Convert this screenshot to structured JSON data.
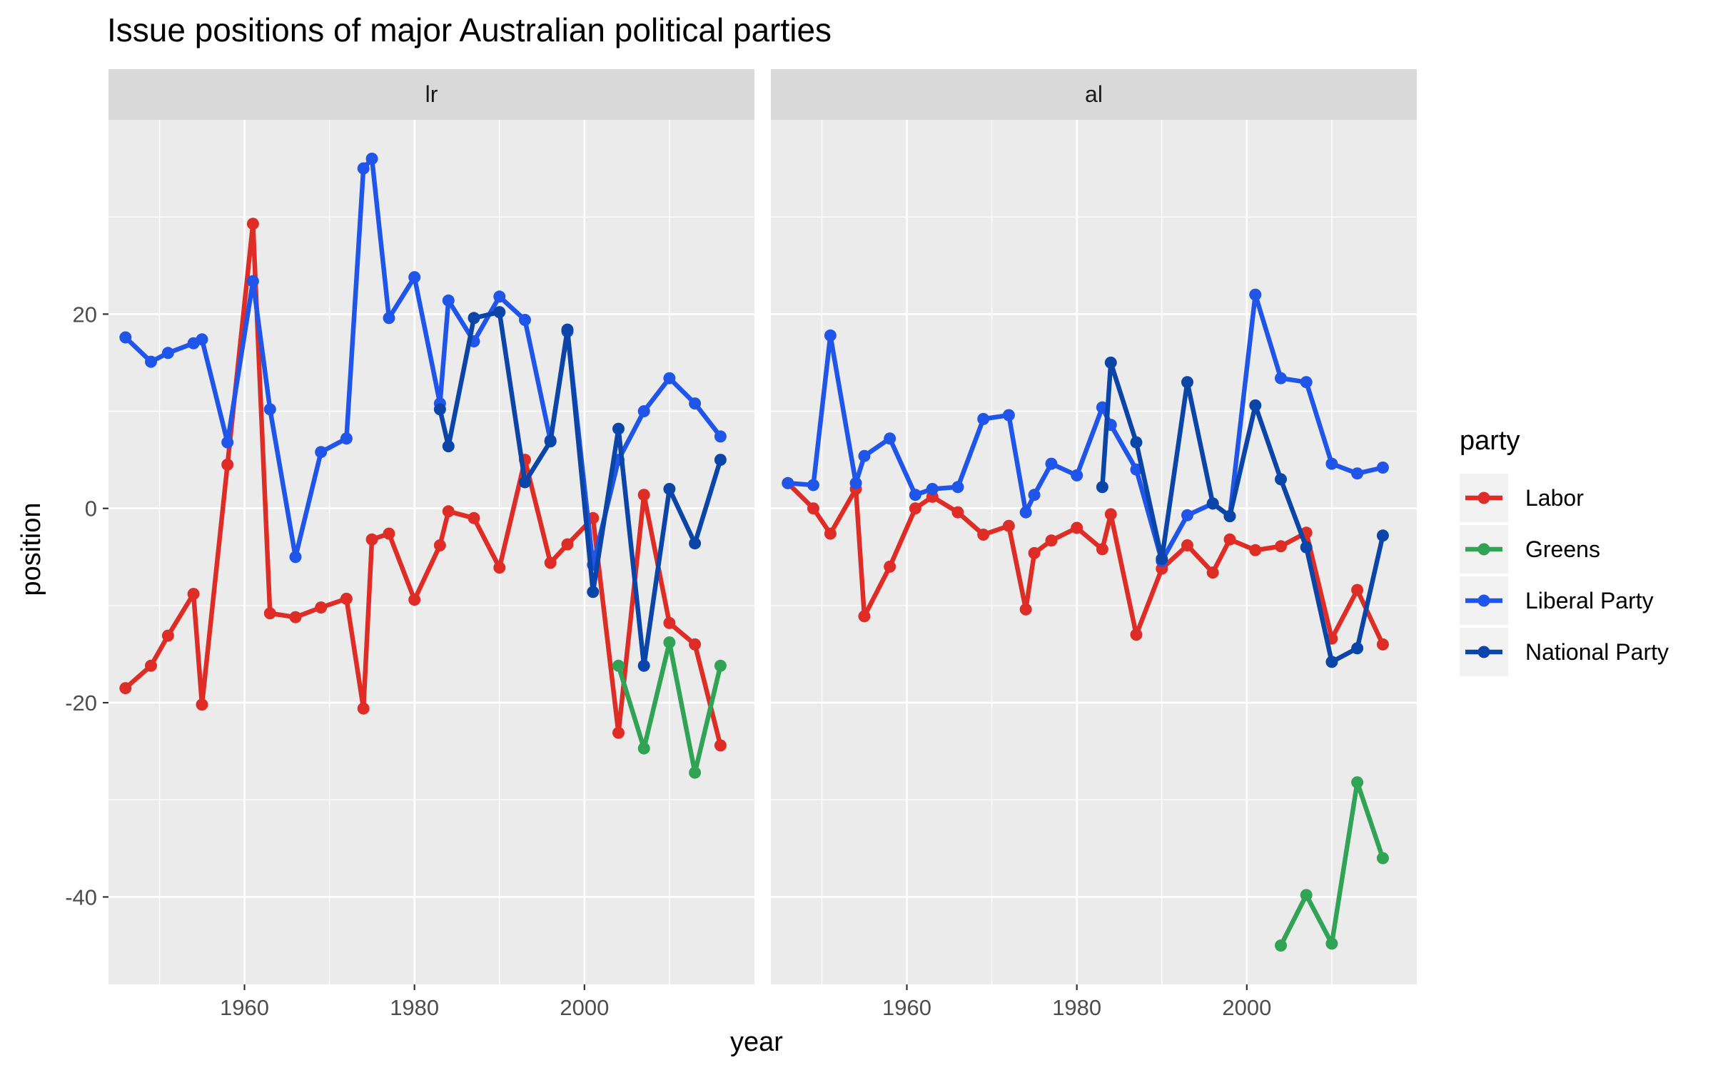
{
  "chart_data": {
    "type": "line",
    "title": "Issue positions of major Australian political parties",
    "xlabel": "year",
    "ylabel": "position",
    "xlim": [
      1944,
      2020
    ],
    "ylim": [
      -49,
      40
    ],
    "x_ticks": [
      1960,
      1980,
      2000
    ],
    "y_ticks": [
      -40,
      -20,
      0,
      20
    ],
    "grid": true,
    "legend": {
      "title": "party",
      "position": "right",
      "entries": [
        "Labor",
        "Greens",
        "Liberal Party",
        "National Party"
      ]
    },
    "colors": {
      "Labor": "#de2d26",
      "Greens": "#31a354",
      "Liberal Party": "#1f55e8",
      "National Party": "#0b45a8"
    },
    "panels": [
      {
        "label": "lr",
        "series": [
          {
            "name": "Labor",
            "points": [
              [
                1946,
                -18.5
              ],
              [
                1949,
                -16.2
              ],
              [
                1951,
                -13.1
              ],
              [
                1954,
                -8.8
              ],
              [
                1955,
                -20.2
              ],
              [
                1958,
                4.5
              ],
              [
                1961,
                29.3
              ],
              [
                1963,
                -10.8
              ],
              [
                1966,
                -11.2
              ],
              [
                1969,
                -10.2
              ],
              [
                1972,
                -9.3
              ],
              [
                1974,
                -20.6
              ],
              [
                1975,
                -3.2
              ],
              [
                1977,
                -2.6
              ],
              [
                1980,
                -9.4
              ],
              [
                1983,
                -3.8
              ],
              [
                1984,
                -0.3
              ],
              [
                1987,
                -1.0
              ],
              [
                1990,
                -6.1
              ],
              [
                1993,
                5.0
              ],
              [
                1996,
                -5.6
              ],
              [
                1998,
                -3.7
              ],
              [
                2001,
                -1.0
              ],
              [
                2004,
                -23.1
              ],
              [
                2007,
                1.4
              ],
              [
                2010,
                -11.8
              ],
              [
                2013,
                -14.0
              ],
              [
                2016,
                -24.4
              ]
            ]
          },
          {
            "name": "Greens",
            "points": [
              [
                2004,
                -16.2
              ],
              [
                2007,
                -24.7
              ],
              [
                2010,
                -13.8
              ],
              [
                2013,
                -27.2
              ],
              [
                2016,
                -16.2
              ]
            ]
          },
          {
            "name": "Liberal Party",
            "points": [
              [
                1946,
                17.6
              ],
              [
                1949,
                15.1
              ],
              [
                1951,
                16.0
              ],
              [
                1954,
                17.0
              ],
              [
                1955,
                17.4
              ],
              [
                1958,
                6.8
              ],
              [
                1961,
                23.4
              ],
              [
                1963,
                10.2
              ],
              [
                1966,
                -5.0
              ],
              [
                1969,
                5.8
              ],
              [
                1972,
                7.2
              ],
              [
                1974,
                35.0
              ],
              [
                1975,
                36.0
              ],
              [
                1977,
                19.6
              ],
              [
                1980,
                23.8
              ],
              [
                1983,
                10.8
              ],
              [
                1984,
                21.4
              ],
              [
                1987,
                17.2
              ],
              [
                1990,
                21.8
              ],
              [
                1993,
                19.4
              ],
              [
                1996,
                7.0
              ],
              [
                1998,
                18.2
              ],
              [
                2001,
                -5.8
              ],
              [
                2004,
                5.0
              ],
              [
                2007,
                10.0
              ],
              [
                2010,
                13.4
              ],
              [
                2013,
                10.8
              ],
              [
                2016,
                7.4
              ]
            ]
          },
          {
            "name": "National Party",
            "points": [
              [
                1983,
                10.2
              ],
              [
                1984,
                6.4
              ],
              [
                1987,
                19.6
              ],
              [
                1990,
                20.2
              ],
              [
                1993,
                2.7
              ],
              [
                1996,
                6.9
              ],
              [
                1998,
                18.4
              ],
              [
                2001,
                -8.6
              ],
              [
                2004,
                8.2
              ],
              [
                2007,
                -16.2
              ],
              [
                2010,
                2.0
              ],
              [
                2013,
                -3.6
              ],
              [
                2016,
                5.0
              ]
            ]
          }
        ]
      },
      {
        "label": "al",
        "series": [
          {
            "name": "Labor",
            "points": [
              [
                1946,
                2.6
              ],
              [
                1949,
                0.0
              ],
              [
                1951,
                -2.6
              ],
              [
                1954,
                2.0
              ],
              [
                1955,
                -11.1
              ],
              [
                1958,
                -6.0
              ],
              [
                1961,
                0.0
              ],
              [
                1963,
                1.2
              ],
              [
                1966,
                -0.4
              ],
              [
                1969,
                -2.7
              ],
              [
                1972,
                -1.8
              ],
              [
                1974,
                -10.4
              ],
              [
                1975,
                -4.6
              ],
              [
                1977,
                -3.3
              ],
              [
                1980,
                -2.0
              ],
              [
                1983,
                -4.2
              ],
              [
                1984,
                -0.6
              ],
              [
                1987,
                -13.0
              ],
              [
                1990,
                -6.2
              ],
              [
                1993,
                -3.8
              ],
              [
                1996,
                -6.6
              ],
              [
                1998,
                -3.2
              ],
              [
                2001,
                -4.3
              ],
              [
                2004,
                -3.9
              ],
              [
                2007,
                -2.5
              ],
              [
                2010,
                -13.4
              ],
              [
                2013,
                -8.4
              ],
              [
                2016,
                -14.0
              ]
            ]
          },
          {
            "name": "Greens",
            "points": [
              [
                2004,
                -45.0
              ],
              [
                2007,
                -39.8
              ],
              [
                2010,
                -44.8
              ],
              [
                2013,
                -28.2
              ],
              [
                2016,
                -36.0
              ]
            ]
          },
          {
            "name": "Liberal Party",
            "points": [
              [
                1946,
                2.6
              ],
              [
                1949,
                2.4
              ],
              [
                1951,
                17.8
              ],
              [
                1954,
                2.6
              ],
              [
                1955,
                5.4
              ],
              [
                1958,
                7.2
              ],
              [
                1961,
                1.4
              ],
              [
                1963,
                2.0
              ],
              [
                1966,
                2.2
              ],
              [
                1969,
                9.2
              ],
              [
                1972,
                9.6
              ],
              [
                1974,
                -0.4
              ],
              [
                1975,
                1.4
              ],
              [
                1977,
                4.6
              ],
              [
                1980,
                3.4
              ],
              [
                1983,
                10.4
              ],
              [
                1984,
                8.6
              ],
              [
                1987,
                4.0
              ],
              [
                1990,
                -5.4
              ],
              [
                1993,
                -0.7
              ],
              [
                1996,
                0.5
              ],
              [
                1998,
                -0.8
              ],
              [
                2001,
                22.0
              ],
              [
                2004,
                13.4
              ],
              [
                2007,
                13.0
              ],
              [
                2010,
                4.6
              ],
              [
                2013,
                3.6
              ],
              [
                2016,
                4.2
              ]
            ]
          },
          {
            "name": "National Party",
            "points": [
              [
                1983,
                2.2
              ],
              [
                1984,
                15.0
              ],
              [
                1987,
                6.8
              ],
              [
                1990,
                -5.2
              ],
              [
                1993,
                13.0
              ],
              [
                1996,
                0.5
              ],
              [
                1998,
                -0.8
              ],
              [
                2001,
                10.6
              ],
              [
                2004,
                3.0
              ],
              [
                2007,
                -4.0
              ],
              [
                2010,
                -15.8
              ],
              [
                2013,
                -14.4
              ],
              [
                2016,
                -2.8
              ]
            ]
          }
        ]
      }
    ]
  }
}
